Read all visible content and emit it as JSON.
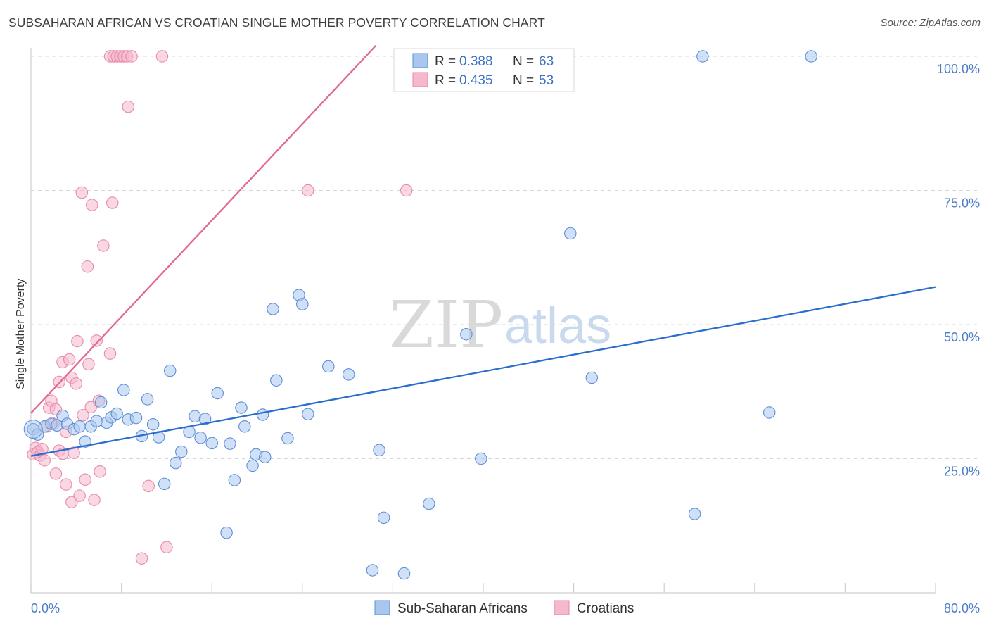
{
  "header": {
    "title": "SUBSAHARAN AFRICAN VS CROATIAN SINGLE MOTHER POVERTY CORRELATION CHART",
    "source": "Source: ZipAtlas.com"
  },
  "watermark": {
    "zip": "ZIP",
    "atlas": "atlas"
  },
  "colors": {
    "blue_fill": "#a9c6ee",
    "blue_stroke": "#5b8fd6",
    "blue_line": "#2a6fcf",
    "pink_fill": "#f5b8cc",
    "pink_stroke": "#e889a8",
    "pink_line": "#e26893",
    "grid": "#d5d5d5",
    "tick_text": "#4a7cc9"
  },
  "legend": {
    "rows": [
      {
        "r_label": "R = ",
        "r_value": "0.388",
        "n_label": "N = ",
        "n_value": "63"
      },
      {
        "r_label": "R = ",
        "r_value": "0.435",
        "n_label": "N = ",
        "n_value": "53"
      }
    ]
  },
  "chart_data": {
    "type": "scatter",
    "title": "SUBSAHARAN AFRICAN VS CROATIAN SINGLE MOTHER POVERTY CORRELATION CHART",
    "xlabel": "",
    "ylabel": "Single Mother Poverty",
    "xlim": [
      0,
      80
    ],
    "ylim": [
      0,
      102
    ],
    "x_tick_labels": [
      "0.0%",
      "80.0%"
    ],
    "y_ticks": [
      25,
      50,
      75,
      100
    ],
    "y_tick_labels": [
      "25.0%",
      "50.0%",
      "75.0%",
      "100.0%"
    ],
    "grid": true,
    "series": [
      {
        "name": "Sub-Saharan Africans",
        "r": 0.388,
        "n": 63,
        "trend": {
          "x0": 0,
          "y0": 25.5,
          "x1": 80,
          "y1": 57
        },
        "points": [
          [
            0.2,
            30.5
          ],
          [
            0.6,
            29.5
          ],
          [
            1.2,
            31.0
          ],
          [
            1.8,
            31.5
          ],
          [
            2.3,
            31.2
          ],
          [
            2.8,
            33.0
          ],
          [
            3.2,
            31.5
          ],
          [
            3.8,
            30.5
          ],
          [
            4.3,
            31.0
          ],
          [
            4.8,
            28.2
          ],
          [
            5.3,
            31.0
          ],
          [
            5.8,
            32.0
          ],
          [
            6.2,
            35.5
          ],
          [
            6.7,
            31.7
          ],
          [
            7.1,
            32.7
          ],
          [
            7.6,
            33.4
          ],
          [
            8.2,
            37.8
          ],
          [
            8.6,
            32.3
          ],
          [
            9.3,
            32.6
          ],
          [
            9.8,
            29.2
          ],
          [
            10.3,
            36.1
          ],
          [
            10.8,
            31.4
          ],
          [
            11.3,
            29.0
          ],
          [
            11.8,
            20.3
          ],
          [
            12.3,
            41.4
          ],
          [
            12.8,
            24.2
          ],
          [
            13.3,
            26.3
          ],
          [
            14.0,
            30.0
          ],
          [
            14.5,
            32.9
          ],
          [
            15.0,
            28.9
          ],
          [
            15.4,
            32.4
          ],
          [
            16.0,
            27.9
          ],
          [
            16.5,
            37.2
          ],
          [
            17.3,
            11.2
          ],
          [
            17.6,
            27.8
          ],
          [
            18.0,
            21.0
          ],
          [
            18.6,
            34.5
          ],
          [
            18.9,
            31.0
          ],
          [
            19.6,
            23.7
          ],
          [
            19.9,
            25.8
          ],
          [
            20.5,
            33.2
          ],
          [
            20.7,
            25.3
          ],
          [
            21.4,
            52.9
          ],
          [
            21.7,
            39.6
          ],
          [
            22.7,
            28.8
          ],
          [
            23.7,
            55.5
          ],
          [
            24.0,
            53.8
          ],
          [
            24.5,
            33.3
          ],
          [
            26.3,
            42.2
          ],
          [
            28.1,
            40.7
          ],
          [
            30.2,
            4.2
          ],
          [
            30.8,
            26.6
          ],
          [
            31.2,
            14.0
          ],
          [
            33.0,
            3.6
          ],
          [
            35.2,
            16.6
          ],
          [
            38.5,
            48.2
          ],
          [
            39.8,
            25.0
          ],
          [
            47.7,
            67.0
          ],
          [
            49.6,
            40.1
          ],
          [
            58.7,
            14.7
          ],
          [
            59.4,
            100.0
          ],
          [
            65.3,
            33.6
          ],
          [
            69.0,
            100.0
          ]
        ]
      },
      {
        "name": "Croatians",
        "r": 0.435,
        "n": 53,
        "trend": {
          "x0": 0,
          "y0": 33.5,
          "x1": 30.5,
          "y1": 102
        },
        "points": [
          [
            0.2,
            25.8
          ],
          [
            0.4,
            27.0
          ],
          [
            0.6,
            26.2
          ],
          [
            0.8,
            25.6
          ],
          [
            1.0,
            26.8
          ],
          [
            1.2,
            24.7
          ],
          [
            1.4,
            31.0
          ],
          [
            1.6,
            34.5
          ],
          [
            1.8,
            35.8
          ],
          [
            2.0,
            31.5
          ],
          [
            2.2,
            34.2
          ],
          [
            2.2,
            22.2
          ],
          [
            2.5,
            26.5
          ],
          [
            2.5,
            39.3
          ],
          [
            2.8,
            25.9
          ],
          [
            2.8,
            43.0
          ],
          [
            3.1,
            30.0
          ],
          [
            3.1,
            20.2
          ],
          [
            3.4,
            43.5
          ],
          [
            3.6,
            40.1
          ],
          [
            3.6,
            16.9
          ],
          [
            3.8,
            26.1
          ],
          [
            4.0,
            39.0
          ],
          [
            4.1,
            46.9
          ],
          [
            4.3,
            18.1
          ],
          [
            4.5,
            74.6
          ],
          [
            4.6,
            33.1
          ],
          [
            4.8,
            21.1
          ],
          [
            5.0,
            60.8
          ],
          [
            5.1,
            42.6
          ],
          [
            5.3,
            34.6
          ],
          [
            5.4,
            72.3
          ],
          [
            5.6,
            17.3
          ],
          [
            5.8,
            47.0
          ],
          [
            6.0,
            35.8
          ],
          [
            6.1,
            22.6
          ],
          [
            6.4,
            64.7
          ],
          [
            7.0,
            44.6
          ],
          [
            7.2,
            72.7
          ],
          [
            7.0,
            100.0
          ],
          [
            7.3,
            100.0
          ],
          [
            7.6,
            100.0
          ],
          [
            7.9,
            100.0
          ],
          [
            8.2,
            100.0
          ],
          [
            8.5,
            100.0
          ],
          [
            8.6,
            90.6
          ],
          [
            8.9,
            100.0
          ],
          [
            9.8,
            6.4
          ],
          [
            10.4,
            19.9
          ],
          [
            11.6,
            100.0
          ],
          [
            12.0,
            8.5
          ],
          [
            24.5,
            75.0
          ],
          [
            33.2,
            75.0
          ]
        ]
      }
    ]
  }
}
